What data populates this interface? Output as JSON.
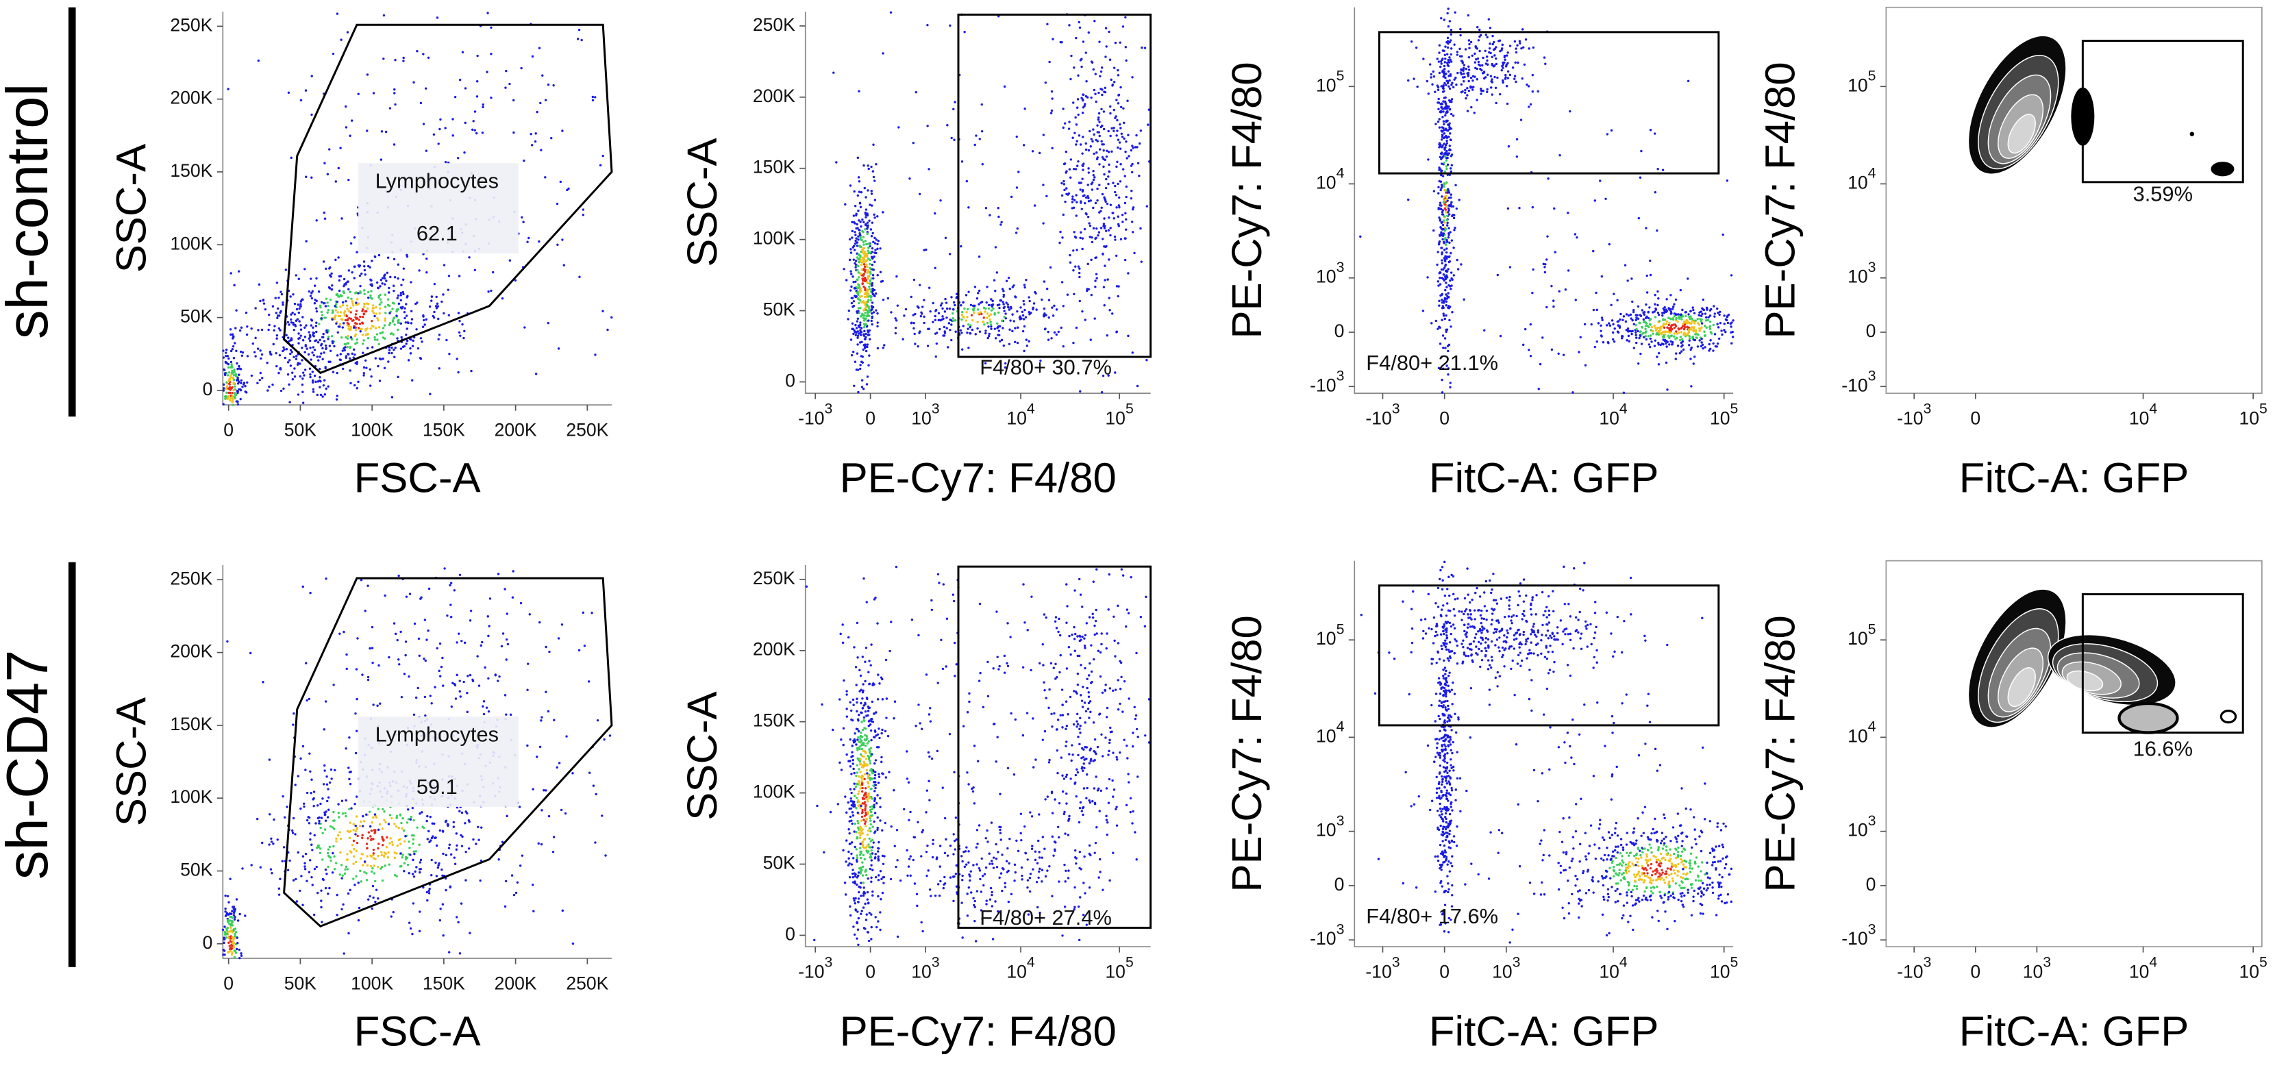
{
  "rows": [
    {
      "label": "sh-control",
      "panels": [
        {
          "x_label": "FSC-A",
          "y_label": "SSC-A",
          "x_scale": "linear",
          "y_scale": "linear",
          "xlim": [
            -4000,
            267000
          ],
          "ylim": [
            -10000,
            260000
          ],
          "xticks": [
            0,
            {
              "value": 50000,
              "label": "50K"
            },
            {
              "value": 100000,
              "label": "100K"
            },
            {
              "value": 150000,
              "label": "150K"
            },
            {
              "value": 200000,
              "label": "200K"
            },
            {
              "value": 250000,
              "label": "250K"
            }
          ],
          "yticks": [
            0,
            {
              "value": 50000,
              "label": "50K"
            },
            {
              "value": 100000,
              "label": "100K"
            },
            {
              "value": 150000,
              "label": "150K"
            },
            {
              "value": 200000,
              "label": "200K"
            },
            {
              "value": 250000,
              "label": "250K"
            }
          ],
          "gate_name": "Lymphocytes",
          "gate_value": 62.1
        },
        {
          "x_label": "PE-Cy7: F4/80",
          "y_label": "SSC-A",
          "x_scale": "biexponential",
          "y_scale": "linear",
          "xlim": [
            -1300,
            207000
          ],
          "ylim": [
            -8000,
            260000
          ],
          "xticks": [
            {
              "value": -1000,
              "label": "-10",
              "exp": "3"
            },
            0,
            {
              "value": 1000,
              "label": "10",
              "exp": "3"
            },
            {
              "value": 10000,
              "label": "10",
              "exp": "4"
            },
            {
              "value": 100000,
              "label": "10",
              "exp": "5"
            }
          ],
          "yticks": [
            0,
            {
              "value": 50000,
              "label": "50K"
            },
            {
              "value": 100000,
              "label": "100K"
            },
            {
              "value": 150000,
              "label": "150K"
            },
            {
              "value": 200000,
              "label": "200K"
            },
            {
              "value": 250000,
              "label": "250K"
            }
          ],
          "gate_label": "F4/80+ 30.7%"
        },
        {
          "x_label": "FitC-A: GFP",
          "y_label": "PE-Cy7: F4/80",
          "x_scale": "biexponential",
          "y_scale": "biexponential",
          "xlim": [
            -1900,
            121000
          ],
          "ylim": [
            -1200,
            650000
          ],
          "xticks": [
            {
              "value": -1000,
              "label": "-10",
              "exp": "3"
            },
            0,
            {
              "value": 10000,
              "label": "10",
              "exp": "4"
            },
            {
              "value": 100000,
              "label": "10",
              "exp": "5"
            }
          ],
          "yticks": [
            {
              "value": -1000,
              "label": "-10",
              "exp": "3"
            },
            0,
            {
              "value": 1000,
              "label": "10",
              "exp": "3"
            },
            {
              "value": 10000,
              "label": "10",
              "exp": "4"
            },
            {
              "value": 100000,
              "label": "10",
              "exp": "5"
            }
          ],
          "gate_label": "F4/80+ 21.1%"
        },
        {
          "x_label": "FitC-A: GFP",
          "y_label": "PE-Cy7: F4/80",
          "x_scale": "biexponential",
          "y_scale": "biexponential",
          "xlim": [
            -1900,
            120000
          ],
          "ylim": [
            -1200,
            650000
          ],
          "xticks": [
            {
              "value": -1000,
              "label": "-10",
              "exp": "3"
            },
            0,
            {
              "value": 10000,
              "label": "10",
              "exp": "4"
            },
            {
              "value": 100000,
              "label": "10",
              "exp": "5"
            }
          ],
          "yticks": [
            {
              "value": -1000,
              "label": "-10",
              "exp": "3"
            },
            0,
            {
              "value": 1000,
              "label": "10",
              "exp": "3"
            },
            {
              "value": 10000,
              "label": "10",
              "exp": "4"
            },
            {
              "value": 100000,
              "label": "10",
              "exp": "5"
            }
          ],
          "gate_label": "3.59%"
        }
      ]
    },
    {
      "label": "sh-CD47",
      "panels": [
        {
          "x_label": "FSC-A",
          "y_label": "SSC-A",
          "x_scale": "linear",
          "y_scale": "linear",
          "xlim": [
            -4000,
            267000
          ],
          "ylim": [
            -10000,
            260000
          ],
          "xticks": [
            0,
            {
              "value": 50000,
              "label": "50K"
            },
            {
              "value": 100000,
              "label": "100K"
            },
            {
              "value": 150000,
              "label": "150K"
            },
            {
              "value": 200000,
              "label": "200K"
            },
            {
              "value": 250000,
              "label": "250K"
            }
          ],
          "yticks": [
            0,
            {
              "value": 50000,
              "label": "50K"
            },
            {
              "value": 100000,
              "label": "100K"
            },
            {
              "value": 150000,
              "label": "150K"
            },
            {
              "value": 200000,
              "label": "200K"
            },
            {
              "value": 250000,
              "label": "250K"
            }
          ],
          "gate_name": "Lymphocytes",
          "gate_value": 59.1
        },
        {
          "x_label": "PE-Cy7: F4/80",
          "y_label": "SSC-A",
          "x_scale": "biexponential",
          "y_scale": "linear",
          "xlim": [
            -1300,
            207000
          ],
          "ylim": [
            -8000,
            260000
          ],
          "xticks": [
            {
              "value": -1000,
              "label": "-10",
              "exp": "3"
            },
            0,
            {
              "value": 1000,
              "label": "10",
              "exp": "3"
            },
            {
              "value": 10000,
              "label": "10",
              "exp": "4"
            },
            {
              "value": 100000,
              "label": "10",
              "exp": "5"
            }
          ],
          "yticks": [
            0,
            {
              "value": 50000,
              "label": "50K"
            },
            {
              "value": 100000,
              "label": "100K"
            },
            {
              "value": 150000,
              "label": "150K"
            },
            {
              "value": 200000,
              "label": "200K"
            },
            {
              "value": 250000,
              "label": "250K"
            }
          ],
          "gate_label": "F4/80+ 27.4%"
        },
        {
          "x_label": "FitC-A: GFP",
          "y_label": "PE-Cy7: F4/80",
          "x_scale": "biexponential",
          "y_scale": "biexponential",
          "xlim": [
            -1900,
            121000
          ],
          "ylim": [
            -1200,
            650000
          ],
          "xticks": [
            {
              "value": -1000,
              "label": "-10",
              "exp": "3"
            },
            0,
            {
              "value": 1000,
              "label": "10",
              "exp": "3"
            },
            {
              "value": 10000,
              "label": "10",
              "exp": "4"
            },
            {
              "value": 100000,
              "label": "10",
              "exp": "5"
            }
          ],
          "yticks": [
            {
              "value": -1000,
              "label": "-10",
              "exp": "3"
            },
            0,
            {
              "value": 1000,
              "label": "10",
              "exp": "3"
            },
            {
              "value": 10000,
              "label": "10",
              "exp": "4"
            },
            {
              "value": 100000,
              "label": "10",
              "exp": "5"
            }
          ],
          "gate_label": "F4/80+ 17.6%"
        },
        {
          "x_label": "FitC-A: GFP",
          "y_label": "PE-Cy7: F4/80",
          "x_scale": "biexponential",
          "y_scale": "biexponential",
          "xlim": [
            -1900,
            120000
          ],
          "ylim": [
            -1200,
            650000
          ],
          "xticks": [
            {
              "value": -1000,
              "label": "-10",
              "exp": "3"
            },
            0,
            {
              "value": 1000,
              "label": "10",
              "exp": "3"
            },
            {
              "value": 10000,
              "label": "10",
              "exp": "4"
            },
            {
              "value": 100000,
              "label": "10",
              "exp": "5"
            }
          ],
          "yticks": [
            {
              "value": -1000,
              "label": "-10",
              "exp": "3"
            },
            0,
            {
              "value": 1000,
              "label": "10",
              "exp": "3"
            },
            {
              "value": 10000,
              "label": "10",
              "exp": "4"
            },
            {
              "value": 100000,
              "label": "10",
              "exp": "5"
            }
          ],
          "gate_label": "16.6%"
        }
      ]
    }
  ]
}
